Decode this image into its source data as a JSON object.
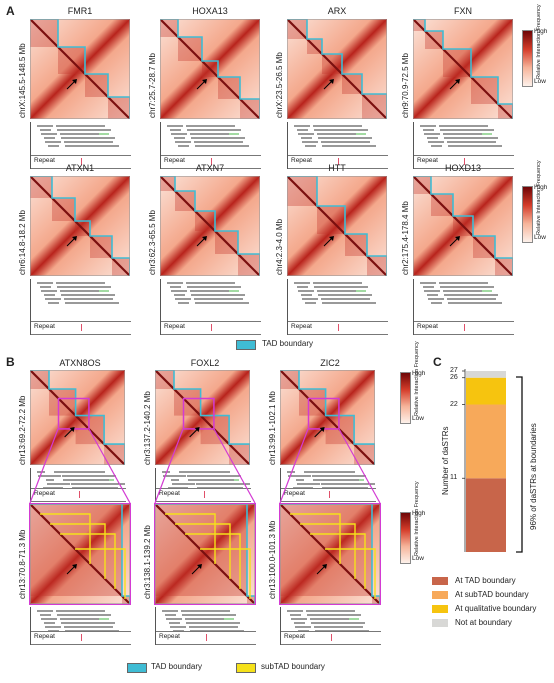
{
  "panelA": {
    "label": "A",
    "rows": [
      [
        {
          "gene": "FMR1",
          "coord": "chrX:145.5-148.5 Mb"
        },
        {
          "gene": "HOXA13",
          "coord": "chr7:25.7-28.7 Mb"
        },
        {
          "gene": "ARX",
          "coord": "chrX:23.5-26.5 Mb"
        },
        {
          "gene": "FXN",
          "coord": "chr9:70.9-72.5 Mb"
        }
      ],
      [
        {
          "gene": "ATXN1",
          "coord": "chr6:14.8-18.2 Mb"
        },
        {
          "gene": "ATXN7",
          "coord": "chr3:62.3-65.5 Mb"
        },
        {
          "gene": "HTT",
          "coord": "chr4:2.3-4.0 Mb"
        },
        {
          "gene": "HOXD13",
          "coord": "chr2:175.4-178.4 Mb"
        }
      ]
    ],
    "repeat_label": "Repeat",
    "colorbar": {
      "high": "High",
      "low": "Low",
      "label": "Relative Interaction Frequency"
    },
    "legend_tad": "TAD boundary"
  },
  "panelB": {
    "label": "B",
    "top": [
      {
        "gene": "ATXN8OS",
        "coord": "chr13:69.2-72.2 Mb"
      },
      {
        "gene": "FOXL2",
        "coord": "chr3:137.2-140.2 Mb"
      },
      {
        "gene": "ZIC2",
        "coord": "chr13:99.1-102.1 Mb"
      }
    ],
    "bottom": [
      {
        "coord": "chr13:70.8-71.3 Mb"
      },
      {
        "coord": "chr3:138.1-139.2 Mb"
      },
      {
        "coord": "chr13:100.0-101.3 Mb"
      }
    ],
    "repeat_label": "Repeat",
    "colorbar": {
      "high": "High",
      "low": "Low",
      "label": "Relative Interaction Frequency"
    },
    "legend_tad": "TAD boundary",
    "legend_subtad": "subTAD boundary"
  },
  "panelC": {
    "label": "C",
    "ylabel": "Number of daSTRs",
    "bracket_label": "96% of daSTRs at boundaries",
    "chart_data": {
      "type": "bar",
      "categories": [
        ""
      ],
      "series": [
        {
          "name": "At TAD boundary",
          "values": [
            11
          ],
          "color": "#c8654a"
        },
        {
          "name": "At subTAD boundary",
          "values": [
            11
          ],
          "color": "#f7a95a"
        },
        {
          "name": "At qualitative boundary",
          "values": [
            4
          ],
          "color": "#f6c40f"
        },
        {
          "name": "Not at boundary",
          "values": [
            1
          ],
          "color": "#d8d8d6"
        }
      ],
      "tick_labels": [
        "11",
        "22",
        "26",
        "27"
      ],
      "ylim": [
        0,
        27
      ]
    }
  },
  "colors": {
    "tad": "#3fbcd4",
    "subtad": "#f5e11a",
    "zoom": "#d33ad3",
    "heat_dark": "#7a0f0f",
    "heat_light": "#fbe3d9"
  }
}
